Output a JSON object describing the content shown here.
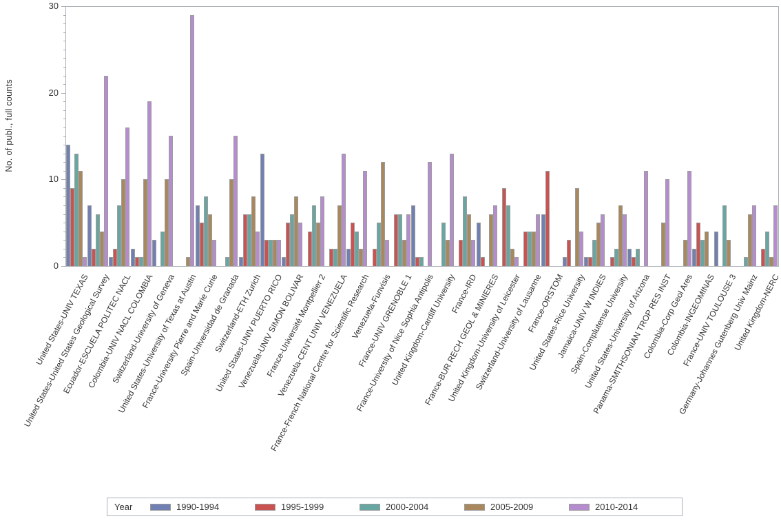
{
  "chart_data": {
    "type": "bar",
    "title": "",
    "xlabel": "",
    "ylabel": "No. of publ., full counts",
    "ylim": [
      0,
      30
    ],
    "y_major_ticks": [
      0,
      10,
      20,
      30
    ],
    "y_minor_tick_step": 1,
    "grid": false,
    "legend_position": "bottom",
    "legend_title": "Year",
    "categories": [
      "United States-UNIV TEXAS",
      "United States-United States Geological Survey",
      "Ecuador-ESCUELA POLITEC NACL",
      "Colombia-UNIV NACL COLOMBIA",
      "Switzerland-University of Geneva",
      "United States-University of Texas at Austin",
      "France-University Pierre and Marie Curie",
      "Spain-Universidad de Granada",
      "Switzerland-ETH Zurich",
      "United States-UNIV PUERTO RICO",
      "Venezuela-UNIV SIMON BOLIVAR",
      "France-Université Montpellier 2",
      "Venezuela-CENT UNIV VENEZUELA",
      "France-French National Centre for Scientific Research",
      "Venezuela-Funvisis",
      "France-UNIV GRENOBLE 1",
      "France-University of Nice Sophia Antipolis",
      "United Kingdom-Cardiff University",
      "France-IRD",
      "France-BUR RECH GEOL & MINIERES",
      "United Kingdom-University of Leicester",
      "Switzerland-University of Lausanne",
      "France-ORSTOM",
      "United States-Rice University",
      "Jamaica-UNIV W INDIES",
      "Spain-Complutense University",
      "United States-University of Arizona",
      "Panama-SMITHSONIAN TROP RES INST",
      "Colombia-Corp Geol Ares",
      "Colombia-INGEOMINAS",
      "France-UNIV TOULOUSE 3",
      "Germany-Johannes Gutenberg Univ Mainz",
      "United Kingdom-NERC"
    ],
    "series": [
      {
        "name": "1990-1994",
        "color": "#7080b2",
        "values": [
          14,
          7,
          1,
          2,
          3,
          0,
          7,
          0,
          1,
          13,
          1,
          0,
          0,
          2,
          0,
          0,
          7,
          0,
          0,
          5,
          0,
          0,
          6,
          1,
          1,
          0,
          2,
          0,
          0,
          2,
          4,
          0,
          0
        ]
      },
      {
        "name": "1995-1999",
        "color": "#ca5352",
        "values": [
          9,
          2,
          2,
          1,
          0,
          0,
          5,
          0,
          6,
          3,
          5,
          4,
          2,
          5,
          2,
          6,
          1,
          0,
          3,
          1,
          9,
          4,
          11,
          3,
          1,
          1,
          1,
          0,
          0,
          5,
          0,
          0,
          2
        ]
      },
      {
        "name": "2000-2004",
        "color": "#68a7a1",
        "values": [
          13,
          6,
          7,
          1,
          4,
          0,
          8,
          1,
          6,
          3,
          6,
          7,
          2,
          4,
          5,
          6,
          1,
          5,
          8,
          0,
          7,
          4,
          0,
          0,
          3,
          2,
          2,
          0,
          0,
          3,
          7,
          1,
          4
        ]
      },
      {
        "name": "2005-2009",
        "color": "#a8885c",
        "values": [
          11,
          4,
          10,
          10,
          10,
          1,
          6,
          10,
          8,
          3,
          8,
          5,
          7,
          2,
          12,
          3,
          0,
          3,
          6,
          6,
          2,
          4,
          0,
          9,
          5,
          7,
          0,
          5,
          3,
          4,
          3,
          6,
          1
        ]
      },
      {
        "name": "2010-2014",
        "color": "#b58dcf",
        "values": [
          1,
          22,
          16,
          19,
          15,
          29,
          3,
          15,
          4,
          3,
          5,
          8,
          13,
          11,
          3,
          6,
          12,
          13,
          3,
          7,
          1,
          6,
          0,
          4,
          6,
          6,
          11,
          10,
          11,
          0,
          0,
          7,
          7
        ]
      }
    ]
  },
  "colors": {
    "axis": "#a9aeb5",
    "bar_border": "#9c9c9c",
    "text": "#333333"
  }
}
